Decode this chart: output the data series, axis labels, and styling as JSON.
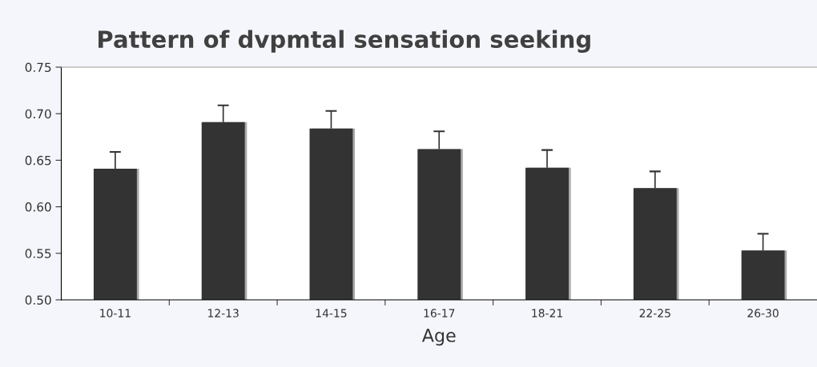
{
  "chart_data": {
    "type": "bar",
    "title": "Pattern of dvpmtal sensation seeking",
    "xlabel": "Age",
    "categories": [
      "10-11",
      "12-13",
      "14-15",
      "16-17",
      "18-21",
      "22-25",
      "26-30"
    ],
    "values": [
      0.641,
      0.691,
      0.684,
      0.662,
      0.642,
      0.62,
      0.553
    ],
    "errors": [
      [
        0.641,
        0.659
      ],
      [
        0.691,
        0.709
      ],
      [
        0.684,
        0.703
      ],
      [
        0.662,
        0.681
      ],
      [
        0.642,
        0.661
      ],
      [
        0.62,
        0.638
      ],
      [
        0.553,
        0.571
      ]
    ],
    "color": "#333333",
    "ylim": [
      0.5,
      0.75
    ],
    "yticks": [
      {
        "value": 0.5,
        "label": "0.50"
      },
      {
        "value": 0.55,
        "label": "0.55"
      },
      {
        "value": 0.6,
        "label": "0.60"
      },
      {
        "value": 0.65,
        "label": "0.65"
      },
      {
        "value": 0.7,
        "label": "0.70"
      },
      {
        "value": 0.75,
        "label": "0.75"
      }
    ],
    "grid": false,
    "legend": false
  }
}
